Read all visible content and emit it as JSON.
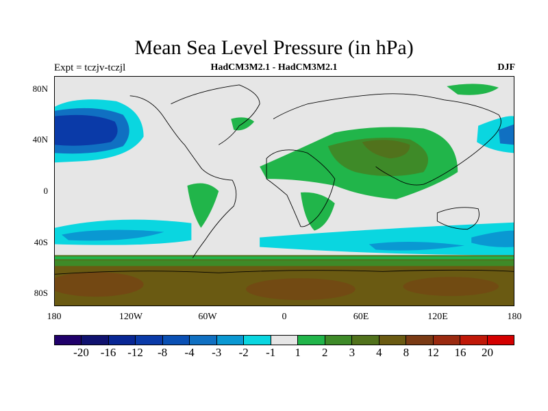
{
  "title": "Mean Sea Level Pressure (in hPa)",
  "left_label": "Expt = tczjv-tczjl",
  "center_label": "HadCM3M2.1 - HadCM3M2.1",
  "right_label": "DJF",
  "y_axis_labels": [
    "80N",
    "40N",
    "0",
    "40S",
    "80S"
  ],
  "x_axis_labels": [
    "180",
    "120W",
    "60W",
    "0",
    "60E",
    "120E",
    "180"
  ],
  "colorbar": {
    "colors": [
      "#20006a",
      "#10126f",
      "#082694",
      "#0a3aa8",
      "#0a50b4",
      "#1070c2",
      "#0a98d2",
      "#0ad6e0",
      "#e6e6e6",
      "#21b54a",
      "#3e8a28",
      "#51721c",
      "#6a5a12",
      "#7a3a14",
      "#9a2a10",
      "#c01808",
      "#d40000"
    ],
    "labels": [
      "-20",
      "-16",
      "-12",
      "-8",
      "-4",
      "-3",
      "-2",
      "-1",
      "1",
      "2",
      "3",
      "4",
      "8",
      "12",
      "16",
      "20"
    ]
  }
}
